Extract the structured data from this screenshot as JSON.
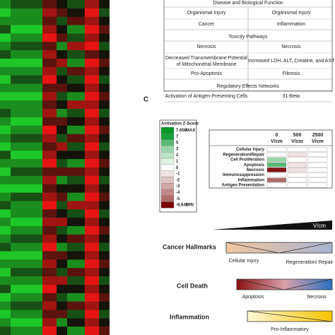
{
  "heatmap": {
    "values": [
      [
        2,
        1,
        -1,
        0,
        1,
        -2,
        0
      ],
      [
        3,
        2,
        -2,
        -1,
        0,
        -3,
        1
      ],
      [
        2,
        2,
        -1,
        1,
        -1,
        -2,
        0
      ],
      [
        1,
        3,
        -2,
        0,
        2,
        -3,
        -1
      ],
      [
        3,
        2,
        -3,
        -1,
        1,
        -2,
        0
      ],
      [
        2,
        1,
        -1,
        2,
        -2,
        -3,
        1
      ],
      [
        1,
        2,
        -2,
        0,
        1,
        -1,
        0
      ],
      [
        3,
        3,
        -1,
        -2,
        2,
        -3,
        -1
      ],
      [
        2,
        2,
        -2,
        1,
        -1,
        -2,
        0
      ],
      [
        3,
        1,
        -3,
        0,
        1,
        -3,
        1
      ],
      [
        2,
        2,
        -1,
        -1,
        0,
        -2,
        0
      ],
      [
        3,
        3,
        -2,
        1,
        2,
        -3,
        -1
      ],
      [
        2,
        2,
        -1,
        0,
        -2,
        -2,
        0
      ],
      [
        1,
        2,
        -2,
        2,
        1,
        -3,
        1
      ],
      [
        2,
        3,
        -1,
        -1,
        0,
        -2,
        0
      ],
      [
        3,
        2,
        -3,
        0,
        2,
        -3,
        -1
      ],
      [
        2,
        1,
        -2,
        1,
        -1,
        -2,
        0
      ],
      [
        3,
        2,
        -1,
        -2,
        1,
        -3,
        1
      ],
      [
        1,
        3,
        -2,
        0,
        0,
        -2,
        0
      ],
      [
        2,
        2,
        -3,
        1,
        2,
        -3,
        -1
      ],
      [
        3,
        1,
        -1,
        -1,
        -1,
        -2,
        0
      ],
      [
        2,
        2,
        -2,
        2,
        1,
        -3,
        1
      ],
      [
        3,
        3,
        -1,
        0,
        0,
        -2,
        0
      ],
      [
        2,
        1,
        -2,
        -1,
        2,
        -3,
        -1
      ],
      [
        1,
        2,
        -3,
        1,
        -2,
        -2,
        0
      ],
      [
        3,
        2,
        -1,
        0,
        1,
        -3,
        1
      ],
      [
        2,
        3,
        -2,
        -2,
        0,
        -2,
        0
      ],
      [
        3,
        2,
        -1,
        1,
        2,
        -3,
        -1
      ],
      [
        2,
        1,
        -2,
        0,
        -1,
        -2,
        0
      ],
      [
        1,
        2,
        -3,
        2,
        1,
        -3,
        1
      ],
      [
        3,
        3,
        -1,
        -1,
        0,
        -2,
        0
      ],
      [
        2,
        2,
        -2,
        0,
        2,
        -3,
        -1
      ],
      [
        3,
        1,
        -1,
        1,
        -1,
        -2,
        0
      ],
      [
        2,
        2,
        -2,
        -2,
        1,
        -3,
        1
      ],
      [
        1,
        3,
        -3,
        0,
        0,
        -2,
        0
      ],
      [
        3,
        2,
        -1,
        1,
        2,
        -3,
        -1
      ],
      [
        2,
        1,
        -2,
        0,
        -1,
        -2,
        0
      ],
      [
        3,
        2,
        -1,
        -1,
        1,
        -3,
        1
      ],
      [
        2,
        3,
        -2,
        2,
        0,
        -2,
        0
      ],
      [
        1,
        2,
        -3,
        0,
        2,
        -3,
        -1
      ]
    ]
  },
  "ipa_table": {
    "sections": [
      {
        "title": "Disease and Biological Function",
        "rows": [
          [
            "Organismal Injury",
            "Organismal Injury"
          ],
          [
            "Cancer",
            "Inflammation"
          ]
        ]
      },
      {
        "title": "Toxicity Pathways",
        "rows": [
          [
            "Necrosis",
            "Necrosis"
          ],
          [
            "Decreased Transmembrane Potential of Mitochondrial Membrane",
            "Increased LDH, ALT, Creatine, and AST"
          ],
          [
            "Pro-Apoptosis",
            "Fibrosis"
          ]
        ]
      },
      {
        "title": "Regulatory Effects Networks",
        "rows": [
          [
            "Activation of Antigen-Presenting Cells",
            "Il1-Beta"
          ]
        ]
      }
    ]
  },
  "panel_label": "C",
  "zscore_legend": {
    "title": "Activation Z-Score",
    "values": [
      7.656,
      7,
      5,
      3,
      2,
      1,
      0,
      -1,
      -2,
      -3,
      -4,
      -5,
      -8.646
    ],
    "max_label": "MAX",
    "min_label": "MIN"
  },
  "zscore_table": {
    "columns": [
      0,
      500,
      2500
    ],
    "unit": "V/cm",
    "rows": [
      "Cellular Injury",
      "Regeneration/Repair",
      "Cell Proliferation",
      "Apoptosis",
      "Necrosis",
      "Immunosuppression",
      "Inflammation",
      "Antigen Presentation"
    ],
    "values": [
      [
        null,
        null,
        null
      ],
      [
        null,
        -1,
        null
      ],
      [
        3,
        null,
        null
      ],
      [
        5,
        -1,
        null
      ],
      [
        -8,
        -1,
        null
      ],
      [
        null,
        null,
        null
      ],
      [
        -5,
        null,
        null
      ],
      [
        null,
        null,
        null
      ]
    ]
  },
  "summary": {
    "axis_label": "V/cm",
    "groups": [
      {
        "title": "Cancer Hallmarks",
        "left": "Cellular Injury",
        "right": "Regeneration/ Repair"
      },
      {
        "title": "Cell Death",
        "left": "Apoptosis",
        "right": "Necrosis"
      },
      {
        "title": "Inflammation",
        "right": "Pro-Inflammatory"
      }
    ]
  }
}
